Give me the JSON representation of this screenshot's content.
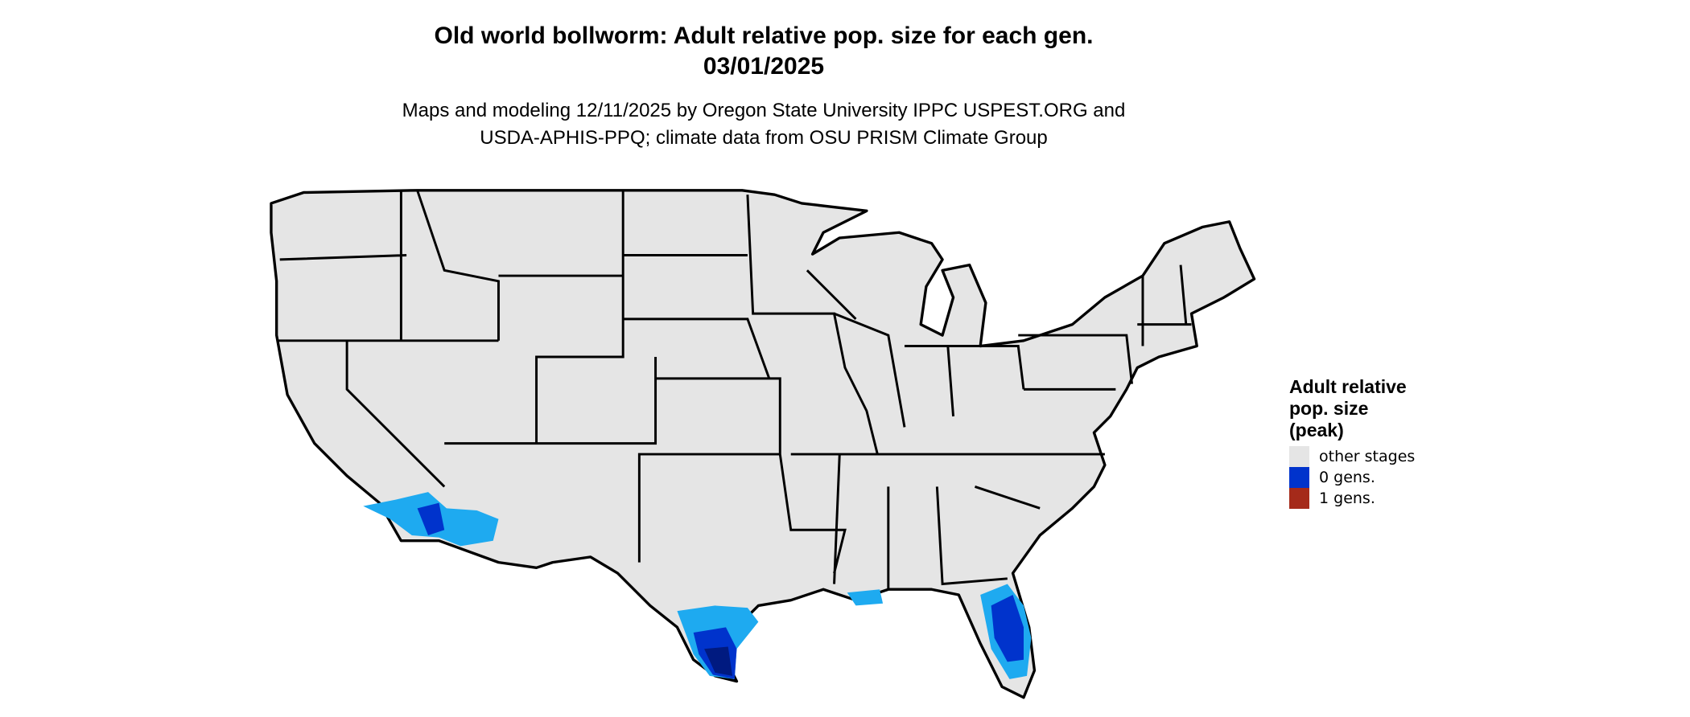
{
  "title": {
    "line1": "Old world bollworm: Adult relative pop. size for each gen.",
    "line2": "03/01/2025"
  },
  "subtitle": {
    "line1": "Maps and modeling 12/11/2025 by Oregon State University IPPC USPEST.ORG and",
    "line2": "USDA-APHIS-PPQ; climate data from OSU PRISM Climate Group"
  },
  "map": {
    "region": "conterminous United States",
    "land_color": "#e5e5e5",
    "border_color": "#000000",
    "highlighted_regions": [
      "southern Texas",
      "Florida peninsula",
      "southern Arizona / southeastern California",
      "coastal Louisiana"
    ]
  },
  "legend": {
    "title_line1": "Adult relative",
    "title_line2": "pop. size",
    "title_line3": "(peak)",
    "items": [
      {
        "label": "other stages",
        "color": "#e5e5e5"
      },
      {
        "label": "0 gens.",
        "color": "#0033cc"
      },
      {
        "label": "1 gens.",
        "color": "#a52a1a"
      }
    ]
  }
}
